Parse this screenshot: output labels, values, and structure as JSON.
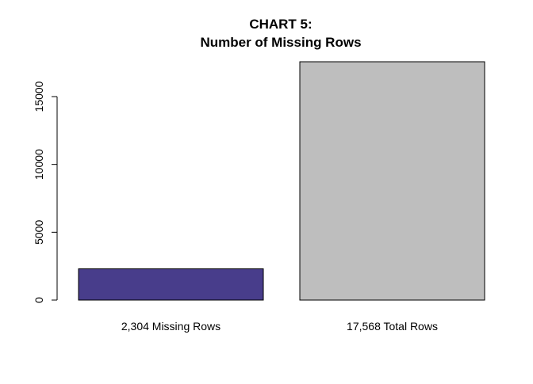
{
  "chart_data": {
    "type": "bar",
    "title": "CHART 5:",
    "subtitle": "Number of Missing Rows",
    "xlabel": "",
    "ylabel": "",
    "categories": [
      "2,304 Missing Rows",
      "17,568 Total Rows"
    ],
    "values": [
      2304,
      17568
    ],
    "ylim": [
      0,
      17568
    ],
    "yticks": [
      0,
      5000,
      10000,
      15000
    ],
    "ytick_labels": [
      "0",
      "5000",
      "10000",
      "15000"
    ],
    "colors": [
      "#483D8B",
      "#BEBEBE"
    ],
    "border_color": "#000000",
    "grid": false,
    "legend": "none"
  }
}
